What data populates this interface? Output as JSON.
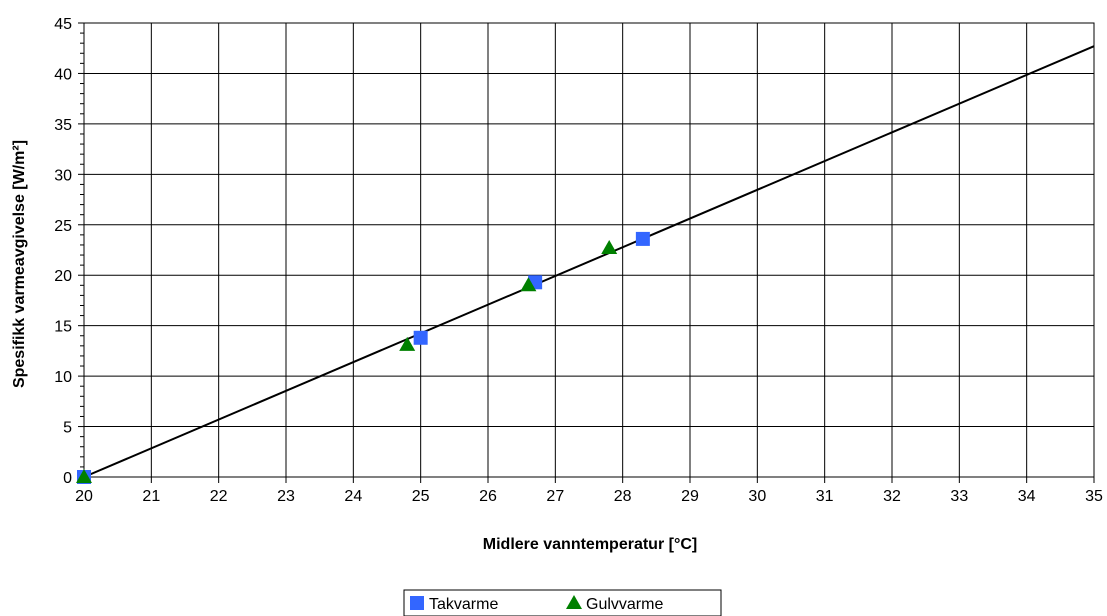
{
  "chart_data": {
    "type": "scatter",
    "title": "",
    "xlabel": "Midlere vanntemperatur [°C]",
    "ylabel": "Spesifikk varmeavgivelse [W/m²]",
    "xlim": [
      20,
      35
    ],
    "ylim": [
      0,
      45
    ],
    "x_ticks": [
      "20",
      "21",
      "22",
      "23",
      "24",
      "25",
      "26",
      "27",
      "28",
      "29",
      "30",
      "31",
      "32",
      "33",
      "34",
      "35"
    ],
    "y_ticks": [
      "0",
      "5",
      "10",
      "15",
      "20",
      "25",
      "30",
      "35",
      "40",
      "45"
    ],
    "grid": true,
    "legend_position": "bottom-center",
    "series": [
      {
        "name": "Takvarme",
        "marker": "square",
        "color": "#3366ff",
        "points": [
          {
            "x": 20,
            "y": 0
          },
          {
            "x": 25,
            "y": 13.8
          },
          {
            "x": 26.7,
            "y": 19.3
          },
          {
            "x": 28.3,
            "y": 23.6
          }
        ]
      },
      {
        "name": "Gulvvarme",
        "marker": "triangle",
        "color": "#008000",
        "points": [
          {
            "x": 20,
            "y": 0
          },
          {
            "x": 24.8,
            "y": 13.1
          },
          {
            "x": 26.6,
            "y": 19.0
          },
          {
            "x": 27.8,
            "y": 22.7
          }
        ]
      }
    ],
    "trendline": {
      "color": "#000000",
      "points": [
        {
          "x": 20,
          "y": 0
        },
        {
          "x": 35,
          "y": 42.7
        }
      ]
    }
  }
}
